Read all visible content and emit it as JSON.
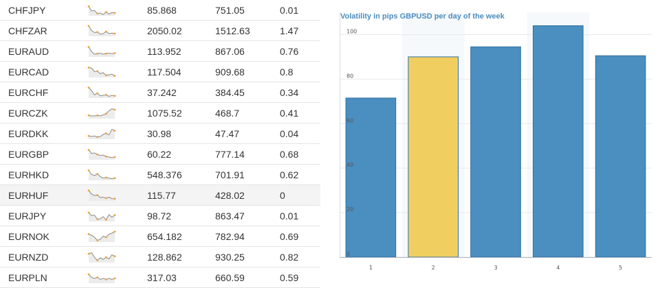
{
  "table": {
    "rows": [
      {
        "pair": "CHFJPY",
        "v1": "85.868",
        "v2": "751.05",
        "v3": "0.01",
        "spark": [
          0.15,
          0.6,
          0.55,
          0.85,
          0.8,
          0.95,
          0.7,
          0.9,
          0.75,
          0.8
        ]
      },
      {
        "pair": "CHFZAR",
        "v1": "2050.02",
        "v2": "1512.63",
        "v3": "1.47",
        "spark": [
          0.05,
          0.5,
          0.7,
          0.65,
          0.85,
          0.8,
          0.6,
          0.8,
          0.75,
          0.8
        ]
      },
      {
        "pair": "EURAUD",
        "v1": "113.952",
        "v2": "867.06",
        "v3": "0.76",
        "spark": [
          0.1,
          0.55,
          0.8,
          0.75,
          0.7,
          0.8,
          0.75,
          0.7,
          0.75,
          0.7
        ]
      },
      {
        "pair": "EURCAD",
        "v1": "117.504",
        "v2": "909.68",
        "v3": "0.8",
        "spark": [
          0.1,
          0.15,
          0.5,
          0.45,
          0.7,
          0.6,
          0.85,
          0.8,
          0.75,
          0.9
        ]
      },
      {
        "pair": "EURCHF",
        "v1": "37.242",
        "v2": "384.45",
        "v3": "0.34",
        "spark": [
          0.05,
          0.35,
          0.75,
          0.6,
          0.85,
          0.8,
          0.75,
          0.9,
          0.8,
          0.85
        ]
      },
      {
        "pair": "EURCZK",
        "v1": "1075.52",
        "v2": "468.7",
        "v3": "0.41",
        "spark": [
          0.75,
          0.8,
          0.8,
          0.75,
          0.8,
          0.7,
          0.6,
          0.3,
          0.1,
          0.2
        ]
      },
      {
        "pair": "EURDKK",
        "v1": "30.98",
        "v2": "47.47",
        "v3": "0.04",
        "spark": [
          0.75,
          0.8,
          0.75,
          0.85,
          0.8,
          0.6,
          0.5,
          0.65,
          0.1,
          0.25
        ]
      },
      {
        "pair": "EURGBP",
        "v1": "60.22",
        "v2": "777.14",
        "v3": "0.68",
        "spark": [
          0.1,
          0.45,
          0.4,
          0.55,
          0.65,
          0.6,
          0.75,
          0.8,
          0.85,
          0.8
        ]
      },
      {
        "pair": "EURHKD",
        "v1": "548.376",
        "v2": "701.91",
        "v3": "0.62",
        "spark": [
          0.1,
          0.5,
          0.6,
          0.45,
          0.7,
          0.85,
          0.8,
          0.85,
          0.9,
          0.85
        ]
      },
      {
        "pair": "EURHUF",
        "v1": "115.77",
        "v2": "428.02",
        "v3": "0",
        "spark": [
          0.05,
          0.4,
          0.55,
          0.5,
          0.75,
          0.7,
          0.8,
          0.7,
          0.85,
          0.85
        ]
      },
      {
        "pair": "EURJPY",
        "v1": "98.72",
        "v2": "863.47",
        "v3": "0.01",
        "spark": [
          0.2,
          0.5,
          0.45,
          0.85,
          0.8,
          0.6,
          0.9,
          0.4,
          0.65,
          0.45
        ]
      },
      {
        "pair": "EURNOK",
        "v1": "654.182",
        "v2": "782.94",
        "v3": "0.69",
        "spark": [
          0.3,
          0.4,
          0.6,
          0.9,
          0.8,
          0.5,
          0.6,
          0.3,
          0.2,
          0.05
        ]
      },
      {
        "pair": "EURNZD",
        "v1": "128.862",
        "v2": "930.25",
        "v3": "0.82",
        "spark": [
          0.2,
          0.1,
          0.55,
          0.85,
          0.6,
          0.75,
          0.55,
          0.7,
          0.3,
          0.45
        ]
      },
      {
        "pair": "EURPLN",
        "v1": "317.03",
        "v2": "660.59",
        "v3": "0.59",
        "spark": [
          0.2,
          0.5,
          0.6,
          0.5,
          0.7,
          0.6,
          0.7,
          0.6,
          0.7,
          0.6
        ]
      }
    ],
    "spark_color": "#8a8a8a",
    "spark_marker_color": "#f0a030",
    "spark_fill": "#ececec"
  },
  "chart_data": {
    "type": "bar",
    "title": "Volatility in pips GBPUSD per day of the week",
    "categories": [
      "1",
      "2",
      "3",
      "4",
      "5"
    ],
    "values": [
      71.5,
      90,
      94.5,
      104,
      90.5
    ],
    "highlight_index": 1,
    "bar_color": "#4a8fc0",
    "bar_border": "#2e6f9e",
    "highlight_color": "#f0cf60",
    "highlight_border": "#2e6f9e",
    "ylim": [
      0,
      110
    ],
    "yticks": [
      0,
      20,
      40,
      60,
      80,
      100
    ],
    "grid": true,
    "xlabel": "",
    "ylabel": ""
  }
}
